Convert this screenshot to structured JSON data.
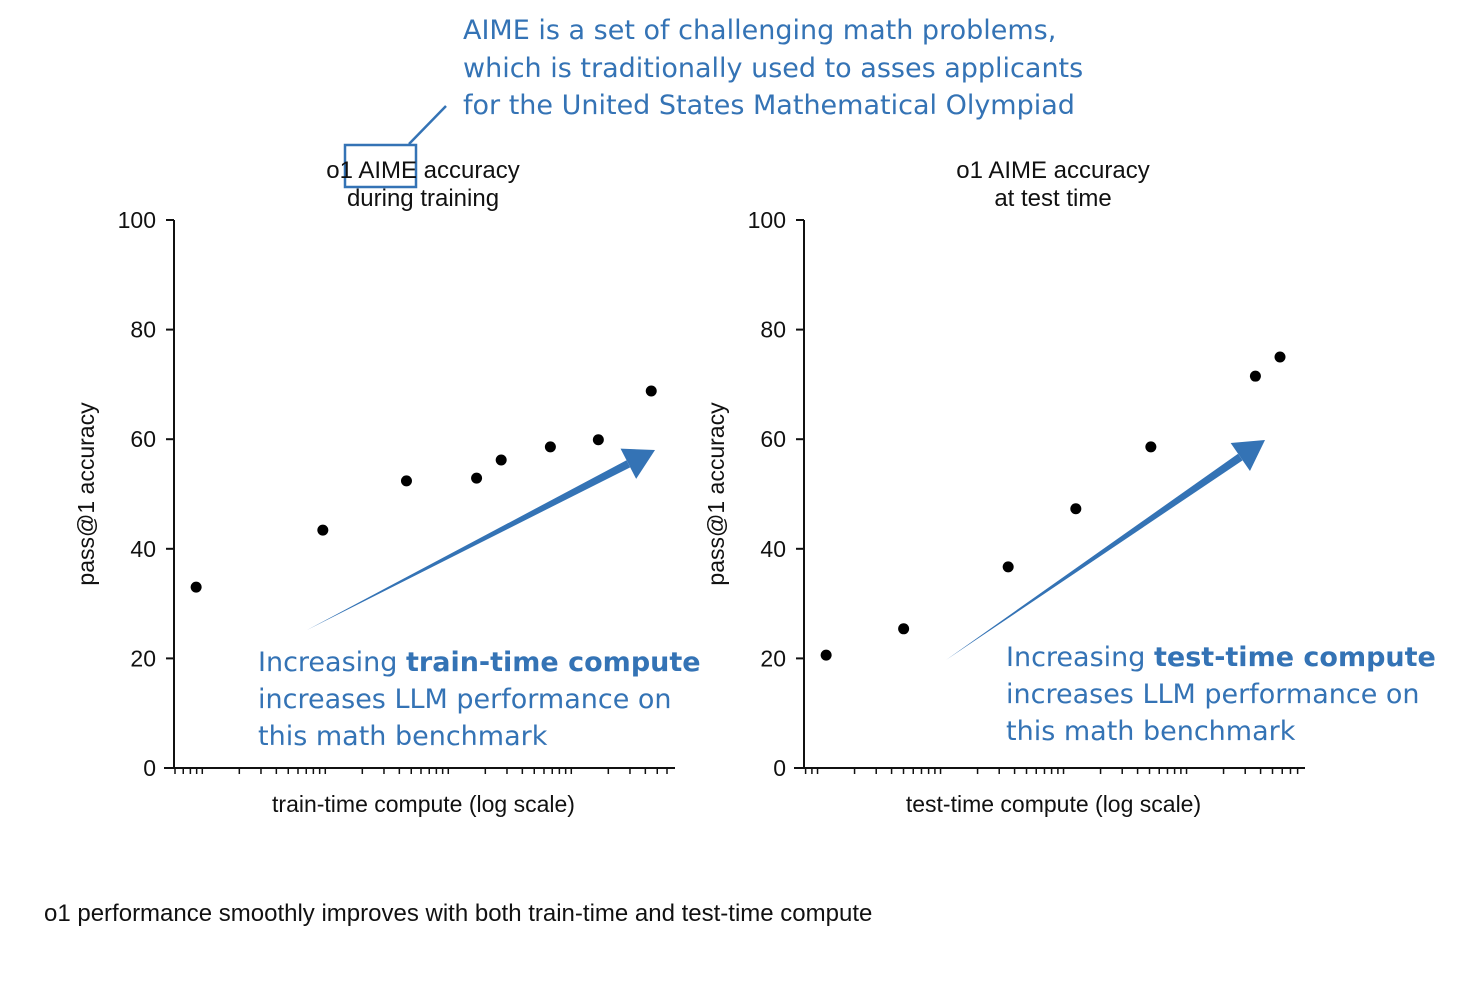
{
  "annotation_top": {
    "lines": [
      "AIME is a set of challenging math problems,",
      "which is traditionally used to asses applicants",
      "for the  United States Mathematical Olympiad"
    ],
    "color": "#3473b5"
  },
  "chart_data": [
    {
      "type": "scatter",
      "title": [
        "o1 AIME accuracy",
        "during training"
      ],
      "xlabel": "train-time compute (log scale)",
      "ylabel": "pass@1 accuracy",
      "x_scale": "log",
      "x_ticklabels": "none",
      "ylim": [
        0,
        100
      ],
      "yticks": [
        0,
        20,
        40,
        60,
        80,
        100
      ],
      "grid": false,
      "x_log10_relative": [
        0.18,
        1.21,
        1.89,
        2.46,
        2.66,
        3.06,
        3.45,
        3.88
      ],
      "y": [
        33,
        43.4,
        52.4,
        52.9,
        56.2,
        58.6,
        59.9,
        68.8
      ],
      "marker_color": "#000000",
      "annotation": {
        "pre": "Increasing ",
        "bold": "train-time compute",
        "rest": "increases LLM performance on\nthis math benchmark"
      }
    },
    {
      "type": "scatter",
      "title": [
        "o1 AIME accuracy",
        "at test time"
      ],
      "xlabel": "test-time compute (log scale)",
      "ylabel": "pass@1 accuracy",
      "x_scale": "log",
      "x_ticklabels": "none",
      "ylim": [
        0,
        100
      ],
      "yticks": [
        0,
        20,
        40,
        60,
        80,
        100
      ],
      "grid": false,
      "x_log10_relative": [
        0.18,
        0.81,
        1.66,
        2.21,
        2.82,
        3.67,
        3.87
      ],
      "y": [
        20.6,
        25.4,
        36.7,
        47.3,
        58.6,
        71.5,
        75.0
      ],
      "marker_color": "#000000",
      "annotation": {
        "pre": "Increasing ",
        "bold": "test-time compute",
        "rest": "increases LLM performance on\nthis math benchmark"
      }
    }
  ],
  "caption": "o1 performance smoothly improves with both train-time and test-time compute"
}
